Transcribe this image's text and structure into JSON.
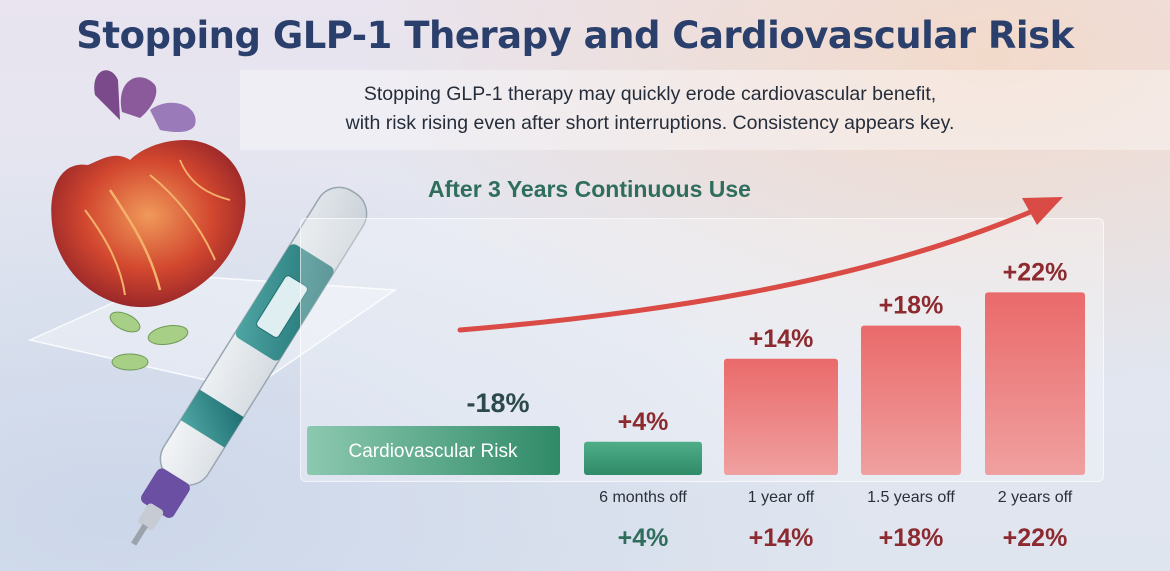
{
  "title": "Stopping GLP-1 Therapy and Cardiovascular Risk",
  "subtitle": {
    "line1": "Stopping GLP-1 therapy may quickly erode cardiovascular benefit,",
    "line2": "with risk rising even after short interruptions. Consistency appears key."
  },
  "colors": {
    "title": "#2a3f6b",
    "green": "#3f9a76",
    "red": "#e0565a",
    "value_red": "#8c2a2f",
    "value_green": "#2f6e5c"
  },
  "chart_data": {
    "type": "bar",
    "title": "After 3 Years Continuous Use",
    "baseline_bar": {
      "label": "Cardiovascular Risk",
      "value": -18,
      "value_label": "-18%"
    },
    "categories": [
      "6 months off",
      "1 year off",
      "1.5 years off",
      "2 years off"
    ],
    "values": [
      4,
      14,
      18,
      22
    ],
    "value_labels": [
      "+4%",
      "+14%",
      "+18%",
      "+22%"
    ],
    "bottom_labels": [
      "+4%",
      "+14%",
      "+18%",
      "+22%"
    ],
    "series_colors": [
      "#3f9a76",
      "#e0565a",
      "#e0565a",
      "#e0565a"
    ],
    "trend_arrow": true,
    "xlabel": "",
    "ylabel": ""
  }
}
